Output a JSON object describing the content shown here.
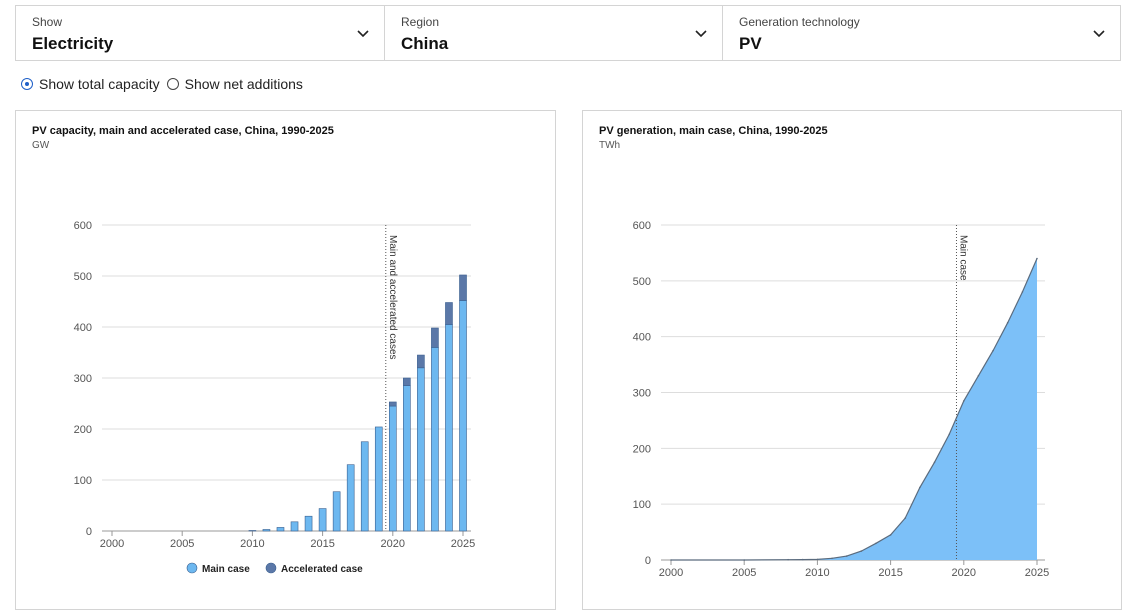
{
  "selectors": [
    {
      "label": "Show",
      "value": "Electricity"
    },
    {
      "label": "Region",
      "value": "China"
    },
    {
      "label": "Generation technology",
      "value": "PV"
    }
  ],
  "radios": {
    "total": "Show total capacity",
    "net": "Show net additions",
    "selected": "total"
  },
  "colors": {
    "main": "#6db8f0",
    "accelerated": "#5b78a8",
    "area": "#7cc0f8",
    "grid": "#dddddd"
  },
  "chart_data": [
    {
      "type": "bar",
      "title": "PV capacity, main and accelerated case, China, 1990-2025",
      "unit": "GW",
      "x": [
        2010,
        2011,
        2012,
        2013,
        2014,
        2015,
        2016,
        2017,
        2018,
        2019,
        2020,
        2021,
        2022,
        2023,
        2024,
        2025
      ],
      "series": [
        {
          "name": "Main case",
          "values": [
            1,
            3,
            7,
            18,
            29,
            44,
            77,
            130,
            175,
            204,
            245,
            285,
            320,
            360,
            405,
            452
          ]
        },
        {
          "name": "Accelerated case",
          "values": [
            0,
            0,
            0,
            0,
            0,
            0,
            0,
            0,
            0,
            0,
            8,
            15,
            25,
            38,
            43,
            50
          ]
        }
      ],
      "xlim": [
        2000,
        2025
      ],
      "xticks": [
        2000,
        2005,
        2010,
        2015,
        2020,
        2025
      ],
      "ylim": [
        0,
        600
      ],
      "yticks": [
        0,
        100,
        200,
        300,
        400,
        500,
        600
      ],
      "annotation": {
        "x": 2019.5,
        "text": "Main and accelerated cases"
      },
      "grid": true,
      "legend_position": "bottom"
    },
    {
      "type": "area",
      "title": "PV generation, main case, China, 1990-2025",
      "unit": "TWh",
      "x": [
        2000,
        2005,
        2008,
        2009,
        2010,
        2011,
        2012,
        2013,
        2014,
        2015,
        2016,
        2017,
        2018,
        2019,
        2020,
        2021,
        2022,
        2023,
        2024,
        2025
      ],
      "values": [
        0,
        0,
        0.5,
        0.7,
        1,
        3,
        7,
        16,
        30,
        45,
        75,
        130,
        175,
        225,
        285,
        330,
        375,
        425,
        480,
        540
      ],
      "xlim": [
        2000,
        2025
      ],
      "xticks": [
        2000,
        2005,
        2010,
        2015,
        2020,
        2025
      ],
      "ylim": [
        0,
        600
      ],
      "yticks": [
        0,
        100,
        200,
        300,
        400,
        500,
        600
      ],
      "annotation": {
        "x": 2019.5,
        "text": "Main case"
      },
      "grid": true
    }
  ]
}
